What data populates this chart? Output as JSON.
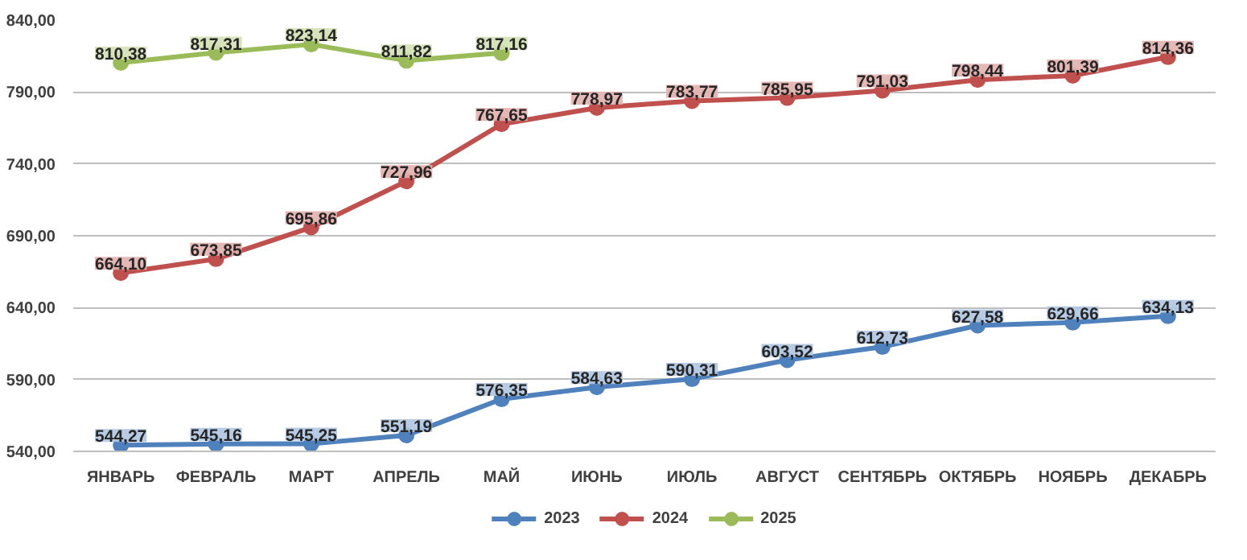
{
  "chart_data": {
    "type": "line",
    "categories": [
      "ЯНВАРЬ",
      "ФЕВРАЛЬ",
      "МАРТ",
      "АПРЕЛЬ",
      "МАЙ",
      "ИЮНЬ",
      "ИЮЛЬ",
      "АВГУСТ",
      "СЕНТЯБРЬ",
      "ОКТЯБРЬ",
      "НОЯБРЬ",
      "ДЕКАБРЬ"
    ],
    "series": [
      {
        "name": "2023",
        "color": "#4f81bd",
        "values": [
          544.27,
          545.16,
          545.25,
          551.19,
          576.35,
          584.63,
          590.31,
          603.52,
          612.73,
          627.58,
          629.66,
          634.13
        ],
        "value_labels": [
          "544,27",
          "545,16",
          "545,25",
          "551,19",
          "576,35",
          "584,63",
          "590,31",
          "603,52",
          "612,73",
          "627,58",
          "629,66",
          "634,13"
        ]
      },
      {
        "name": "2024",
        "color": "#c0504d",
        "values": [
          664.1,
          673.85,
          695.86,
          727.96,
          767.65,
          778.97,
          783.77,
          785.95,
          791.03,
          798.44,
          801.39,
          814.36
        ],
        "value_labels": [
          "664,10",
          "673,85",
          "695,86",
          "727,96",
          "767,65",
          "778,97",
          "783,77",
          "785,95",
          "791,03",
          "798,44",
          "801,39",
          "814,36"
        ]
      },
      {
        "name": "2025",
        "color": "#9bbb59",
        "values": [
          810.38,
          817.31,
          823.14,
          811.82,
          817.16,
          null,
          null,
          null,
          null,
          null,
          null,
          null
        ],
        "value_labels": [
          "810,38",
          "817,31",
          "823,14",
          "811,82",
          "817,16",
          null,
          null,
          null,
          null,
          null,
          null,
          null
        ]
      }
    ],
    "ylim": [
      540,
      840
    ],
    "yticks": [
      {
        "value": 540,
        "label": "540,00"
      },
      {
        "value": 590,
        "label": "590,00"
      },
      {
        "value": 640,
        "label": "640,00"
      },
      {
        "value": 690,
        "label": "690,00"
      },
      {
        "value": 740,
        "label": "740,00"
      },
      {
        "value": 790,
        "label": "790,00"
      },
      {
        "value": 840,
        "label": "840,00"
      }
    ],
    "grid": "y",
    "legend": "bottom",
    "marker": "circle",
    "line_style": "solid"
  }
}
